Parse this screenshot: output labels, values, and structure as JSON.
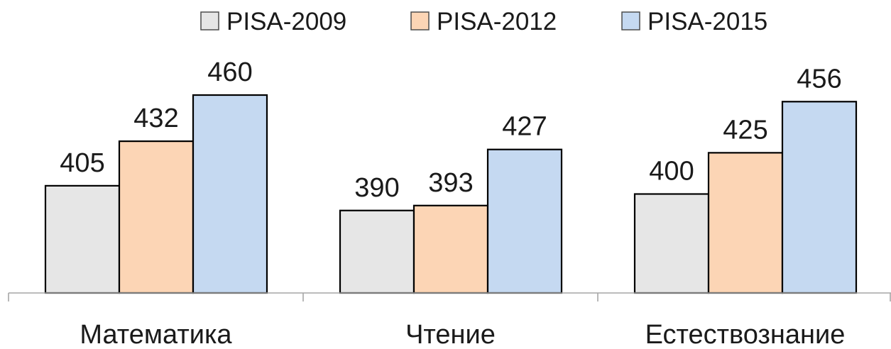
{
  "chart_data": {
    "type": "bar",
    "categories": [
      "Математика",
      "Чтение",
      "Естествознание"
    ],
    "series": [
      {
        "name": "PISA-2009",
        "values": [
          405,
          390,
          400
        ],
        "color": "#e6e6e6"
      },
      {
        "name": "PISA-2012",
        "values": [
          432,
          393,
          425
        ],
        "color": "#fcd5b5"
      },
      {
        "name": "PISA-2015",
        "values": [
          460,
          427,
          456
        ],
        "color": "#c5d9f1"
      }
    ],
    "data_labels": true,
    "legend": "top-center",
    "grid": false,
    "ylim": [
      340,
      470
    ]
  }
}
